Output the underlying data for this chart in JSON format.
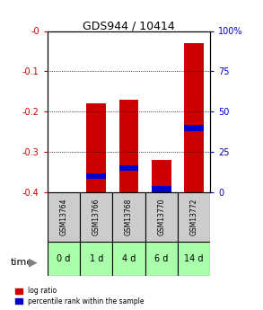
{
  "title": "GDS944 / 10414",
  "categories": [
    "GSM13764",
    "GSM13766",
    "GSM13768",
    "GSM13770",
    "GSM13772"
  ],
  "time_labels": [
    "0 d",
    "1 d",
    "4 d",
    "6 d",
    "14 d"
  ],
  "log_ratio": [
    0.0,
    -0.18,
    -0.17,
    -0.32,
    -0.03
  ],
  "bar_bottom": -0.4,
  "percentile_rank": [
    null,
    0.1,
    0.15,
    0.02,
    0.4
  ],
  "ylim_left": [
    -0.4,
    0.0
  ],
  "ylim_right": [
    0,
    100
  ],
  "yticks_left": [
    0.0,
    -0.1,
    -0.2,
    -0.3,
    -0.4
  ],
  "ytick_labels_left": [
    "-0",
    "-0.1",
    "-0.2",
    "-0.3",
    "-0.4"
  ],
  "yticks_right": [
    0,
    25,
    50,
    75,
    100
  ],
  "bar_color_red": "#cc0000",
  "bar_color_blue": "#0000cc",
  "grid_color": "#000000",
  "bar_width": 0.6,
  "sample_bg_color": "#cccccc",
  "time_bg_color": "#aaffaa",
  "legend_red": "log ratio",
  "legend_blue": "percentile rank within the sample",
  "time_arrow_label": "time"
}
